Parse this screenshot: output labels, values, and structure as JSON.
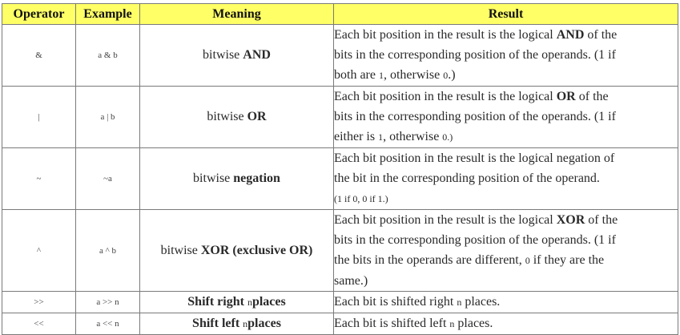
{
  "headers": {
    "operator": "Operator",
    "example": "Example",
    "meaning": "Meaning",
    "result": "Result"
  },
  "rows": [
    {
      "operator": "&",
      "example": "a & b",
      "meaning_prefix": "bitwise ",
      "meaning_bold": "AND",
      "result": [
        [
          "Each bit position in the result is the logical ",
          "AND",
          " of the"
        ],
        [
          "bits in the corresponding position of the operands. (",
          "1 if",
          ""
        ],
        [
          "both are ",
          "1",
          ", otherwise ",
          "0",
          ".)"
        ]
      ]
    },
    {
      "operator": "|",
      "example": "a | b",
      "meaning_prefix": "bitwise ",
      "meaning_bold": "OR",
      "result": [
        [
          "Each bit position in the result is the logical ",
          "OR",
          " of the"
        ],
        [
          "bits in the corresponding position of the operands. (",
          "1 if"
        ],
        [
          "either is ",
          "1",
          ", otherwise ",
          "0.)"
        ]
      ]
    },
    {
      "operator": "~",
      "example": "~a",
      "meaning_prefix": "bitwise ",
      "meaning_bold": "negation",
      "result": [
        [
          "Each bit position in the result is the logical negation of"
        ],
        [
          "the bit in the corresponding position of the operand."
        ],
        [
          "(1 if 0, 0 if 1.)"
        ]
      ]
    },
    {
      "operator": "^",
      "example": "a ^ b",
      "meaning_prefix": "bitwise ",
      "meaning_bold": "XOR (exclusive OR)",
      "result": [
        [
          "Each bit position in the result is the logical ",
          "XOR",
          " of the"
        ],
        [
          "bits in the corresponding position of the operands. (",
          "1 if"
        ],
        [
          "the bits in the operands are different, ",
          "0",
          " if they are the"
        ],
        [
          "same.)"
        ]
      ]
    },
    {
      "operator": ">>",
      "example": "a >> n",
      "meaning_bold_1": "Shift right ",
      "meaning_small": "n",
      "meaning_bold_2": "places",
      "result": [
        [
          "Each bit is shifted right ",
          "n",
          " places."
        ]
      ]
    },
    {
      "operator": "<<",
      "example": "a << n",
      "meaning_bold_1": "Shift left ",
      "meaning_small": "n",
      "meaning_bold_2": "places",
      "result": [
        [
          "Each bit is shifted left ",
          "n",
          " places."
        ]
      ]
    }
  ]
}
